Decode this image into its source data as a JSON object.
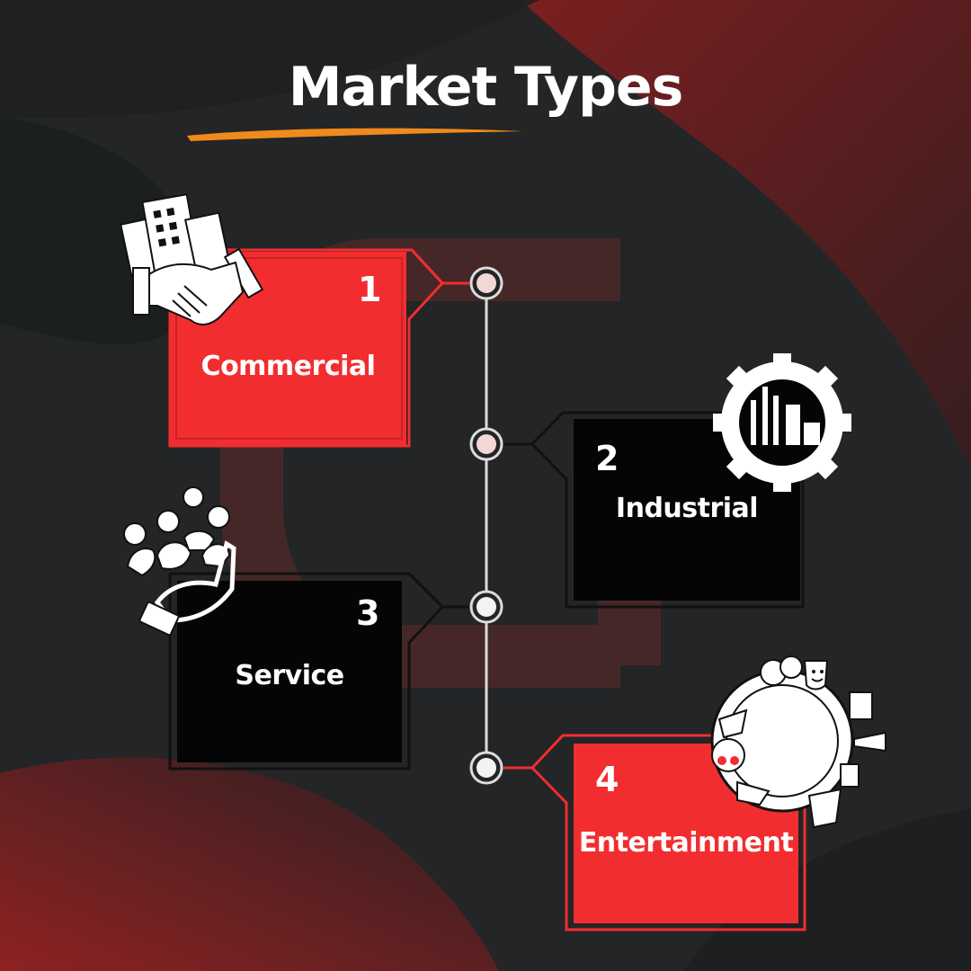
{
  "title": "Market Types",
  "colors": {
    "background": "#232527",
    "accent_red": "#f22d2f",
    "dark_box": "#050505",
    "underline": "#f08a1c",
    "outline_dark": "#111111"
  },
  "items": [
    {
      "number": "1",
      "label": "Commercial",
      "style": "red",
      "icon": "buildings-handshake-icon"
    },
    {
      "number": "2",
      "label": "Industrial",
      "style": "dark",
      "icon": "factory-gear-icon"
    },
    {
      "number": "3",
      "label": "Service",
      "style": "dark",
      "icon": "people-hand-icon"
    },
    {
      "number": "4",
      "label": "Entertainment",
      "style": "red",
      "icon": "entertainment-circle-icon"
    }
  ]
}
